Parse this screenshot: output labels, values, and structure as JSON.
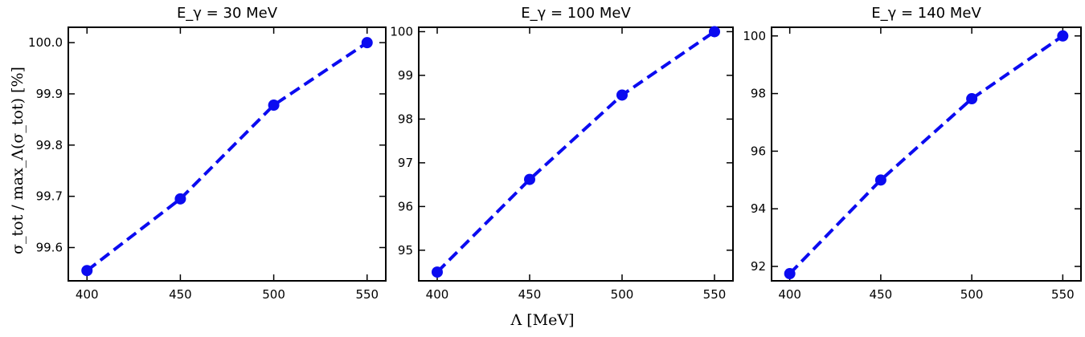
{
  "colors": {
    "series": "#0b0bf0",
    "axis": "#000000"
  },
  "figure": {
    "xlabel": "Λ [MeV]",
    "ylabel": "σ_tot / max_Λ(σ_tot) [%]"
  },
  "chart_data": [
    {
      "type": "line",
      "title": "E_γ = 30 MeV",
      "x": [
        400,
        450,
        500,
        550
      ],
      "y": [
        99.555,
        99.695,
        99.878,
        100.0
      ],
      "xlim": [
        390,
        560
      ],
      "ylim": [
        99.535,
        100.03
      ],
      "xticks": [
        400,
        450,
        500,
        550
      ],
      "yticks": [
        99.6,
        99.7,
        99.8,
        99.9,
        100.0
      ],
      "yticklabels": [
        "99.6",
        "99.7",
        "99.8",
        "99.9",
        "100.0"
      ],
      "xticklabels": [
        "400",
        "450",
        "500",
        "550"
      ],
      "marker": "circle",
      "linestyle": "dashed"
    },
    {
      "type": "line",
      "title": "E_γ = 100 MeV",
      "x": [
        400,
        450,
        500,
        550
      ],
      "y": [
        94.5,
        96.62,
        98.55,
        100.0
      ],
      "xlim": [
        390,
        560
      ],
      "ylim": [
        94.3,
        100.1
      ],
      "xticks": [
        400,
        450,
        500,
        550
      ],
      "yticks": [
        95,
        96,
        97,
        98,
        99,
        100
      ],
      "yticklabels": [
        "95",
        "96",
        "97",
        "98",
        "99",
        "100"
      ],
      "xticklabels": [
        "400",
        "450",
        "500",
        "550"
      ],
      "marker": "circle",
      "linestyle": "dashed"
    },
    {
      "type": "line",
      "title": "E_γ = 140 MeV",
      "x": [
        400,
        450,
        500,
        550
      ],
      "y": [
        91.75,
        95.0,
        97.82,
        100.0
      ],
      "xlim": [
        390,
        560
      ],
      "ylim": [
        91.5,
        100.3
      ],
      "xticks": [
        400,
        450,
        500,
        550
      ],
      "yticks": [
        92,
        94,
        96,
        98,
        100
      ],
      "yticklabels": [
        "92",
        "94",
        "96",
        "98",
        "100"
      ],
      "xticklabels": [
        "400",
        "450",
        "500",
        "550"
      ],
      "marker": "circle",
      "linestyle": "dashed"
    }
  ]
}
